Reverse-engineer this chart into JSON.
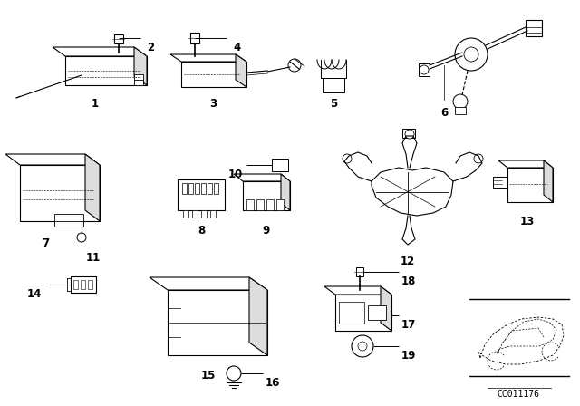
{
  "bg_color": "#ffffff",
  "diagram_code": "CC011176",
  "line_color": "#000000",
  "text_color": "#000000",
  "font_size": 8.5,
  "fig_w": 6.4,
  "fig_h": 4.48,
  "dpi": 100
}
